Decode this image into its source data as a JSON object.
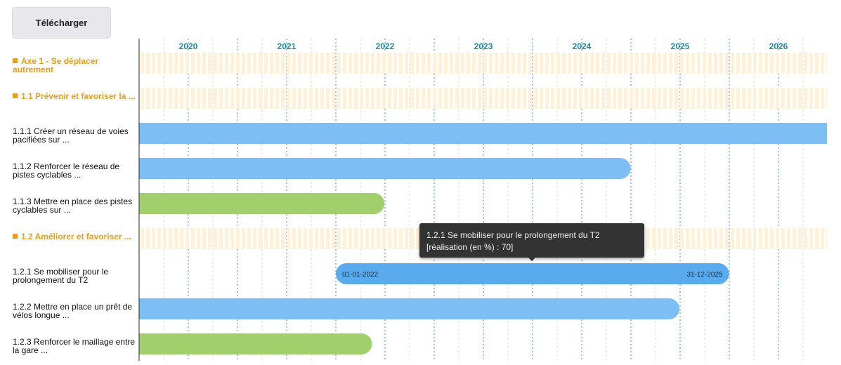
{
  "toolbar": {
    "download_label": "Télécharger"
  },
  "chart_data": {
    "type": "gantt",
    "years": [
      "2020",
      "2021",
      "2022",
      "2023",
      "2024",
      "2025",
      "2026"
    ],
    "rows": [
      {
        "label": "Axe 1 - Se déplacer autrement",
        "kind": "group"
      },
      {
        "label": "1.1 Prévenir et favoriser la ...",
        "kind": "group"
      },
      {
        "label": "1.1.1 Créer un réseau de voies pacifiées sur ...",
        "kind": "task",
        "start": "2019-06-01",
        "end": "2026-12-31",
        "color": "#7dbef5"
      },
      {
        "label": "1.1.2 Renforcer le réseau de pistes cyclables ...",
        "kind": "task",
        "start": "2020-01-01",
        "end": "2024-12-31",
        "color": "#7dbef5"
      },
      {
        "label": "1.1.3 Mettre en place des pistes cyclables sur ...",
        "kind": "task",
        "start": "2019-06-01",
        "end": "2022-06-30",
        "color": "#a1cf6b"
      },
      {
        "label": "1.2 Améliorer et favoriser ...",
        "kind": "group"
      },
      {
        "label": "1.2.1 Se mobiliser pour le prolongement du T2",
        "kind": "task",
        "start": "2022-01-01",
        "end": "2025-12-31",
        "color": "#5aabed",
        "start_label": "01-01-2022",
        "end_label": "31-12-2025",
        "progress_pct": 70
      },
      {
        "label": "1.2.2 Mettre en place un prêt de vélos longue ...",
        "kind": "task",
        "start": "2019-06-01",
        "end": "2025-06-30",
        "color": "#7dbef5"
      },
      {
        "label": "1.2.3 Renforcer le maillage entre la gare ...",
        "kind": "task",
        "start": "2019-06-01",
        "end": "2022-05-15",
        "color": "#a1cf6b"
      }
    ],
    "group_color": "#ef9d10",
    "year_label_color": "#23899a",
    "tooltip": {
      "title": "1.2.1 Se mobiliser pour le prolongement du T2",
      "detail": "[réalisation (en %) : 70]"
    }
  }
}
